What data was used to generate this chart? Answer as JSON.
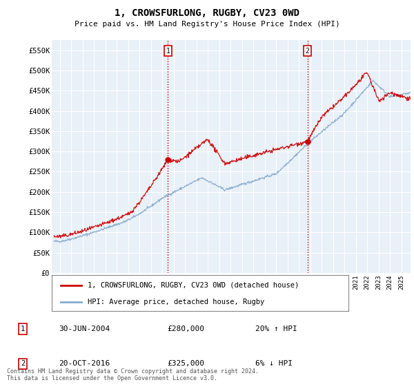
{
  "title": "1, CROWSFURLONG, RUGBY, CV23 0WD",
  "subtitle": "Price paid vs. HM Land Registry's House Price Index (HPI)",
  "ylabel_ticks": [
    "£0",
    "£50K",
    "£100K",
    "£150K",
    "£200K",
    "£250K",
    "£300K",
    "£350K",
    "£400K",
    "£450K",
    "£500K",
    "£550K"
  ],
  "ytick_values": [
    0,
    50000,
    100000,
    150000,
    200000,
    250000,
    300000,
    350000,
    400000,
    450000,
    500000,
    550000
  ],
  "ylim": [
    0,
    575000
  ],
  "legend_line1": "1, CROWSFURLONG, RUGBY, CV23 0WD (detached house)",
  "legend_line2": "HPI: Average price, detached house, Rugby",
  "sale1_label": "1",
  "sale1_date": "30-JUN-2004",
  "sale1_price": "£280,000",
  "sale1_hpi": "20% ↑ HPI",
  "sale1_x": 2004.5,
  "sale1_y": 280000,
  "sale2_label": "2",
  "sale2_date": "20-OCT-2016",
  "sale2_price": "£325,000",
  "sale2_hpi": "6% ↓ HPI",
  "sale2_x": 2016.75,
  "sale2_y": 325000,
  "footer": "Contains HM Land Registry data © Crown copyright and database right 2024.\nThis data is licensed under the Open Government Licence v3.0.",
  "line_color_red": "#cc0000",
  "line_color_blue": "#88aacc",
  "vline_color": "#cc0000",
  "background_color": "#ffffff",
  "plot_bg_color": "#e8f0f8",
  "grid_color": "#ffffff",
  "xlim_left": 1994.3,
  "xlim_right": 2025.8,
  "xticks_start": 1995,
  "xticks_end": 2025
}
